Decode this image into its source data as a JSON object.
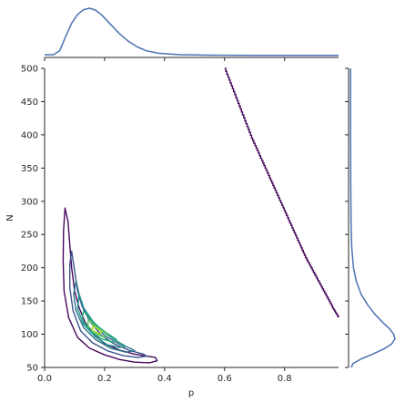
{
  "colors": {
    "marginal_line": "#4c72b0",
    "contour_levels": [
      "#46085c",
      "#3b528b",
      "#2c728e",
      "#21918c",
      "#28ae80",
      "#5ec962",
      "#addc30",
      "#fde725"
    ],
    "axis": "#262626",
    "background": "#ffffff"
  },
  "chart_data": {
    "type": "contour",
    "xlabel": "p",
    "ylabel": "N",
    "xlim": [
      0.0,
      0.98
    ],
    "ylim": [
      50,
      500
    ],
    "x_ticks": [
      "0.0",
      "0.2",
      "0.4",
      "0.6",
      "0.8"
    ],
    "y_ticks": [
      "50",
      "100",
      "150",
      "200",
      "250",
      "300",
      "350",
      "400",
      "450",
      "500"
    ],
    "x_tick_values": [
      0.0,
      0.2,
      0.4,
      0.6,
      0.8
    ],
    "y_tick_values": [
      50,
      100,
      150,
      200,
      250,
      300,
      350,
      400,
      450,
      500
    ],
    "grid": false,
    "legend": "none",
    "marginal_x_density": [
      [
        0.0,
        0.02
      ],
      [
        0.03,
        0.02
      ],
      [
        0.05,
        0.1
      ],
      [
        0.07,
        0.4
      ],
      [
        0.09,
        0.68
      ],
      [
        0.11,
        0.87
      ],
      [
        0.13,
        0.97
      ],
      [
        0.15,
        1.0
      ],
      [
        0.17,
        0.96
      ],
      [
        0.19,
        0.86
      ],
      [
        0.22,
        0.66
      ],
      [
        0.25,
        0.46
      ],
      [
        0.28,
        0.3
      ],
      [
        0.31,
        0.18
      ],
      [
        0.34,
        0.1
      ],
      [
        0.38,
        0.05
      ],
      [
        0.45,
        0.02
      ],
      [
        0.55,
        0.01
      ],
      [
        0.7,
        0.005
      ],
      [
        0.98,
        0.003
      ]
    ],
    "marginal_y_density": [
      [
        50,
        0.02
      ],
      [
        56,
        0.06
      ],
      [
        63,
        0.25
      ],
      [
        70,
        0.5
      ],
      [
        78,
        0.75
      ],
      [
        85,
        0.92
      ],
      [
        93,
        1.0
      ],
      [
        100,
        0.97
      ],
      [
        108,
        0.88
      ],
      [
        118,
        0.72
      ],
      [
        130,
        0.55
      ],
      [
        145,
        0.38
      ],
      [
        160,
        0.24
      ],
      [
        180,
        0.13
      ],
      [
        200,
        0.07
      ],
      [
        230,
        0.03
      ],
      [
        270,
        0.015
      ],
      [
        330,
        0.008
      ],
      [
        420,
        0.005
      ],
      [
        500,
        0.004
      ]
    ],
    "contour_level_1": [
      [
        0.068,
        290
      ],
      [
        0.078,
        270
      ],
      [
        0.083,
        240
      ],
      [
        0.09,
        200
      ],
      [
        0.1,
        165
      ],
      [
        0.115,
        140
      ],
      [
        0.135,
        118
      ],
      [
        0.16,
        101
      ],
      [
        0.2,
        86
      ],
      [
        0.25,
        76
      ],
      [
        0.3,
        70
      ],
      [
        0.34,
        67
      ],
      [
        0.37,
        65
      ],
      [
        0.375,
        60
      ],
      [
        0.35,
        57
      ],
      [
        0.3,
        58
      ],
      [
        0.25,
        62
      ],
      [
        0.2,
        69
      ],
      [
        0.15,
        79
      ],
      [
        0.11,
        95
      ],
      [
        0.08,
        125
      ],
      [
        0.065,
        165
      ],
      [
        0.062,
        210
      ],
      [
        0.063,
        255
      ],
      [
        0.068,
        290
      ]
    ],
    "contour_level_1_tail": [
      [
        0.6,
        500
      ],
      [
        0.63,
        465
      ],
      [
        0.66,
        430
      ],
      [
        0.69,
        395
      ],
      [
        0.72,
        365
      ],
      [
        0.75,
        335
      ],
      [
        0.78,
        305
      ],
      [
        0.81,
        275
      ],
      [
        0.84,
        245
      ],
      [
        0.87,
        215
      ],
      [
        0.9,
        190
      ],
      [
        0.93,
        165
      ],
      [
        0.96,
        140
      ],
      [
        0.98,
        125
      ]
    ],
    "contour_level_2": [
      [
        0.09,
        225
      ],
      [
        0.1,
        195
      ],
      [
        0.11,
        165
      ],
      [
        0.125,
        142
      ],
      [
        0.15,
        120
      ],
      [
        0.19,
        98
      ],
      [
        0.23,
        86
      ],
      [
        0.28,
        76
      ],
      [
        0.33,
        70
      ],
      [
        0.34,
        67
      ],
      [
        0.31,
        65
      ],
      [
        0.26,
        68
      ],
      [
        0.21,
        75
      ],
      [
        0.16,
        87
      ],
      [
        0.12,
        105
      ],
      [
        0.095,
        135
      ],
      [
        0.084,
        170
      ],
      [
        0.084,
        205
      ],
      [
        0.09,
        225
      ]
    ],
    "contour_level_3": [
      [
        0.105,
        180
      ],
      [
        0.115,
        160
      ],
      [
        0.13,
        140
      ],
      [
        0.16,
        118
      ],
      [
        0.2,
        98
      ],
      [
        0.25,
        85
      ],
      [
        0.29,
        78
      ],
      [
        0.3,
        75
      ],
      [
        0.27,
        73
      ],
      [
        0.22,
        79
      ],
      [
        0.17,
        92
      ],
      [
        0.13,
        110
      ],
      [
        0.105,
        135
      ],
      [
        0.097,
        160
      ],
      [
        0.105,
        180
      ]
    ],
    "contour_level_4": [
      [
        0.115,
        160
      ],
      [
        0.13,
        140
      ],
      [
        0.16,
        120
      ],
      [
        0.2,
        102
      ],
      [
        0.24,
        90
      ],
      [
        0.27,
        82
      ],
      [
        0.25,
        80
      ],
      [
        0.21,
        84
      ],
      [
        0.17,
        96
      ],
      [
        0.13,
        115
      ],
      [
        0.11,
        138
      ],
      [
        0.115,
        160
      ]
    ],
    "contour_level_5": [
      [
        0.13,
        135
      ],
      [
        0.16,
        118
      ],
      [
        0.2,
        104
      ],
      [
        0.24,
        92
      ],
      [
        0.23,
        88
      ],
      [
        0.19,
        93
      ],
      [
        0.15,
        106
      ],
      [
        0.125,
        122
      ],
      [
        0.13,
        135
      ]
    ],
    "contour_level_6": [
      [
        0.145,
        122
      ],
      [
        0.175,
        110
      ],
      [
        0.21,
        100
      ],
      [
        0.2,
        95
      ],
      [
        0.17,
        101
      ],
      [
        0.145,
        112
      ],
      [
        0.145,
        122
      ]
    ],
    "contour_level_7": [
      [
        0.16,
        113
      ],
      [
        0.19,
        104
      ],
      [
        0.185,
        100
      ],
      [
        0.16,
        106
      ],
      [
        0.16,
        113
      ]
    ]
  }
}
